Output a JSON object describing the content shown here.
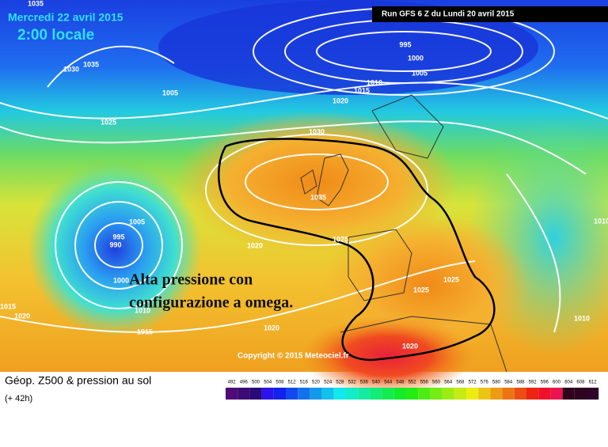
{
  "header": {
    "date": "Mercredi 22 avril 2015",
    "time": "2:00 locale",
    "run": "Run GFS 6 Z du Lundi 20 avril 2015"
  },
  "map": {
    "isobar_labels": [
      1035,
      1030,
      1035,
      1005,
      1025,
      995,
      1000,
      1005,
      1010,
      1015,
      1020,
      1030,
      1035,
      1005,
      995,
      990,
      1020,
      1025,
      1000,
      1010,
      1015,
      1020,
      1025,
      1025,
      1020,
      1015,
      1020,
      1010,
      1010
    ],
    "annotation": [
      "Alta pressione con",
      "configurazione a omega."
    ],
    "copyright": "Copyright © 2015 Meteociel.fr"
  },
  "footer": {
    "title": "Géop. Z500 & pression au sol",
    "subtitle": "(+ 42h)",
    "scale": [
      492,
      496,
      500,
      504,
      508,
      512,
      516,
      520,
      524,
      528,
      532,
      536,
      540,
      544,
      548,
      552,
      556,
      560,
      564,
      568,
      572,
      576,
      580,
      584,
      588,
      592,
      596,
      600,
      604,
      608,
      612
    ]
  }
}
